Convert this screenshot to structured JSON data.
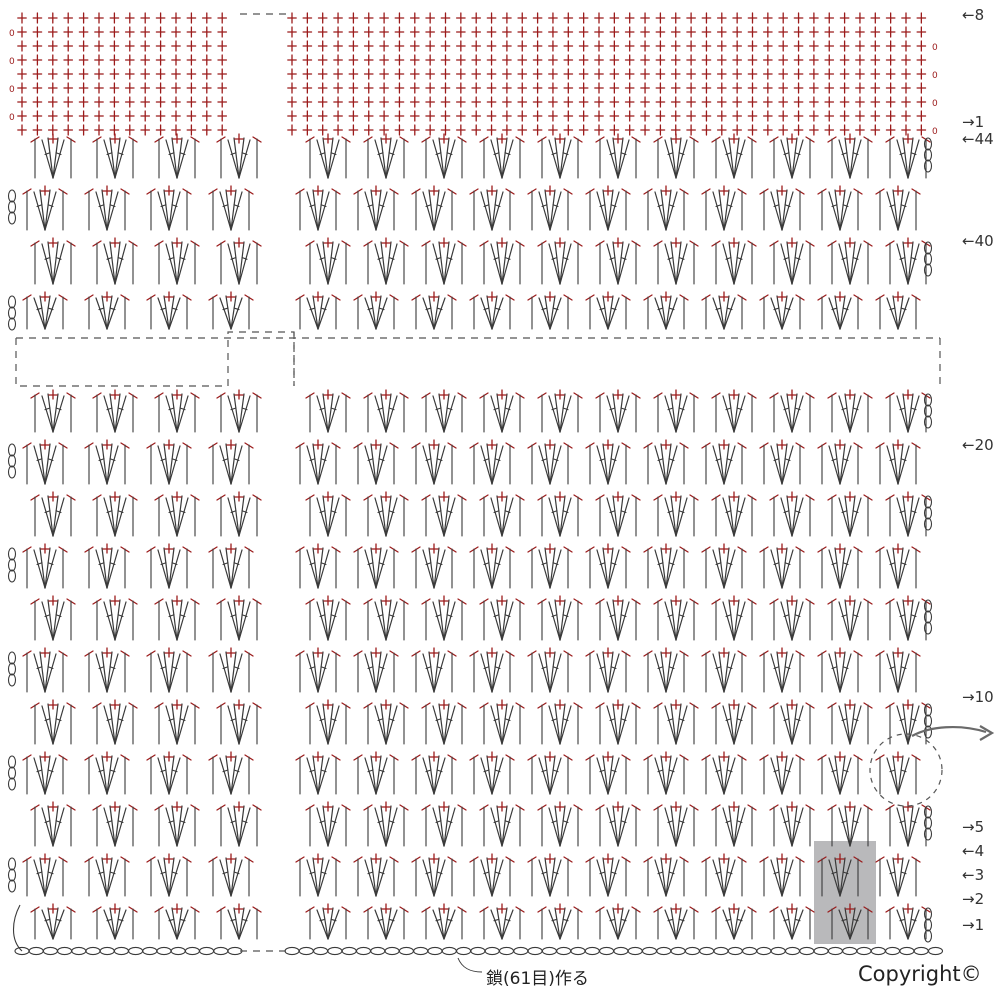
{
  "row_markers": [
    {
      "text": "←8",
      "row": 8
    },
    {
      "text": "→1",
      "row": 1
    },
    {
      "text": "←44",
      "row": 44
    },
    {
      "text": "←40",
      "row": 40
    },
    {
      "text": "←20",
      "row": 20
    },
    {
      "text": "→10",
      "row": 10
    },
    {
      "text": "→5",
      "row": 5
    },
    {
      "text": "←4",
      "row": 4
    },
    {
      "text": "←3",
      "row": 3
    },
    {
      "text": "→2",
      "row": 2
    },
    {
      "text": "→1",
      "row": 1
    }
  ],
  "foundation_caption": "鎖(61目)作る",
  "copyright": "Copyright©",
  "colors": {
    "red": "#9b1b1b",
    "dark": "#3a3a3a",
    "dashed": "#555555",
    "highlight": "#b9b9bb"
  }
}
